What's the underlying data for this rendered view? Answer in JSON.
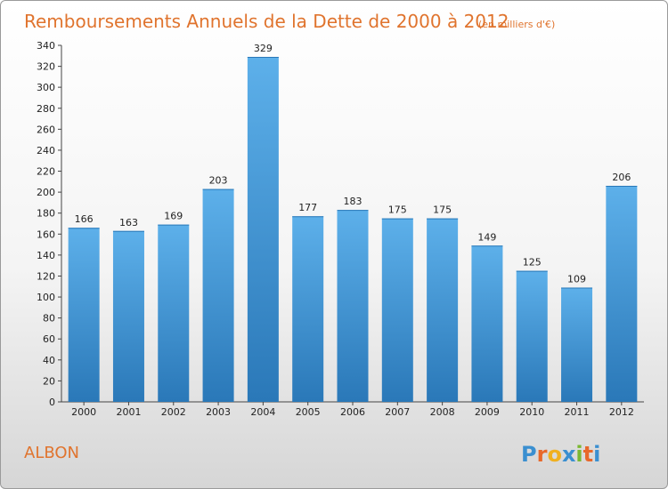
{
  "title": "Remboursements Annuels de la Dette de 2000 à 2012",
  "unit_note": "(en milliers d'€)",
  "commune": "ALBON",
  "logo": {
    "letters": [
      "P",
      "r",
      "o",
      "x",
      "i",
      "t",
      "i"
    ],
    "colors": [
      "#3a8fd0",
      "#e8682a",
      "#f0b020",
      "#3a8fd0",
      "#7ab832",
      "#e8682a",
      "#3a8fd0"
    ]
  },
  "colors": {
    "bar": "#4a9edb",
    "bar_light": "#5db0ea",
    "bar_dark": "#2a78b8",
    "accent": "#e0742e"
  },
  "chart_data": {
    "type": "bar",
    "categories": [
      "2000",
      "2001",
      "2002",
      "2003",
      "2004",
      "2005",
      "2006",
      "2007",
      "2008",
      "2009",
      "2010",
      "2011",
      "2012"
    ],
    "values": [
      166,
      163,
      169,
      203,
      329,
      177,
      183,
      175,
      175,
      149,
      125,
      109,
      206
    ],
    "ylim": [
      0,
      340
    ],
    "yticks": [
      0,
      20,
      40,
      60,
      80,
      100,
      120,
      140,
      160,
      180,
      200,
      220,
      240,
      260,
      280,
      300,
      320,
      340
    ],
    "grid": false,
    "xlabel": "",
    "ylabel": ""
  }
}
